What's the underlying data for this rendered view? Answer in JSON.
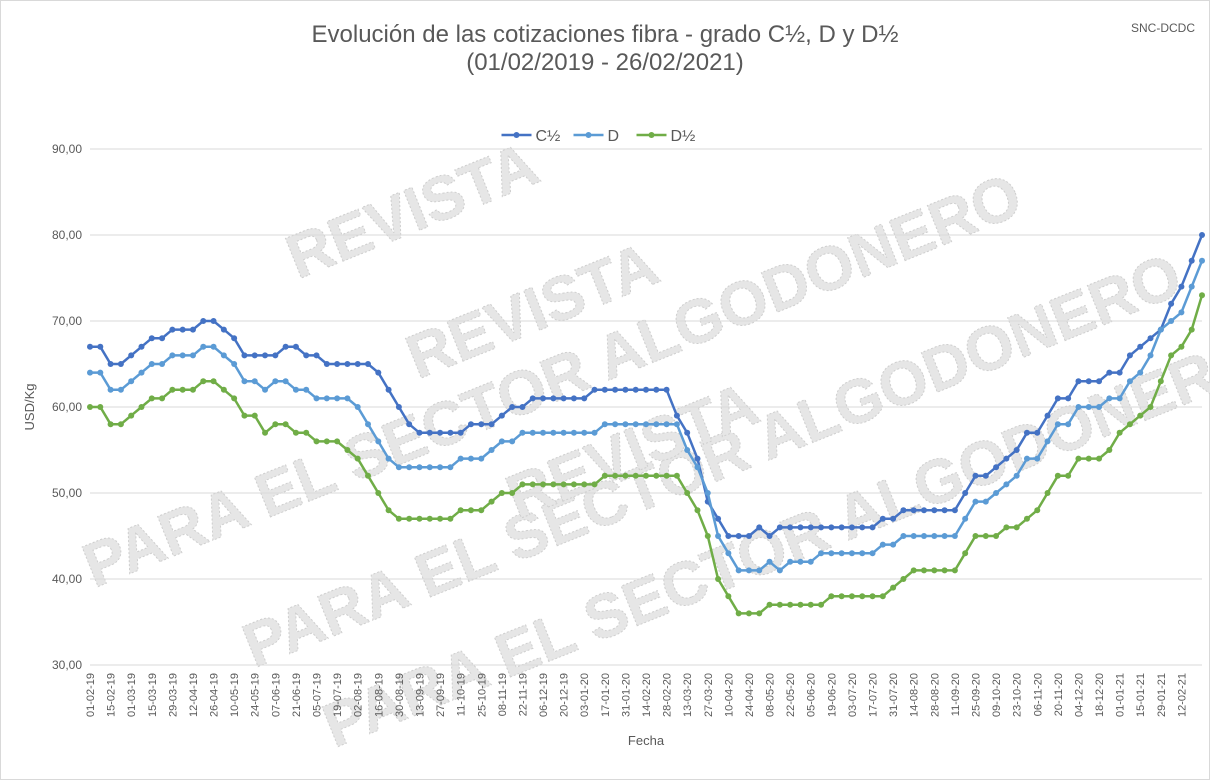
{
  "chart_data": {
    "type": "line",
    "title": "Evolución de las cotizaciones fibra - grado C½, D y D½",
    "subtitle": "(01/02/2019 - 26/02/2021)",
    "source": "SNC-DCDC",
    "xlabel": "Fecha",
    "ylabel": "USD/Kg",
    "watermark": [
      "REVISTA",
      "PARA EL SECTOR ALGODONERO",
      "REVISTA",
      "PARA EL SECTOR ALGODONERO",
      "REVISTA",
      "PARA EL SECTOR ALGODONERO"
    ],
    "legend": "top",
    "grid": true,
    "categories": [
      "01-02-19",
      null,
      "15-02-19",
      null,
      "01-03-19",
      null,
      "15-03-19",
      null,
      "29-03-19",
      null,
      "12-04-19",
      null,
      "26-04-19",
      null,
      "10-05-19",
      null,
      "24-05-19",
      null,
      "07-06-19",
      null,
      "21-06-19",
      null,
      "05-07-19",
      null,
      "19-07-19",
      null,
      "02-08-19",
      null,
      "16-08-19",
      null,
      "30-08-19",
      null,
      "13-09-19",
      null,
      "27-09-19",
      null,
      "11-10-19",
      null,
      "25-10-19",
      null,
      "08-11-19",
      null,
      "22-11-19",
      null,
      "06-12-19",
      null,
      "20-12-19",
      null,
      "03-01-20",
      null,
      "17-01-20",
      null,
      "31-01-20",
      null,
      "14-02-20",
      null,
      "28-02-20",
      null,
      "13-03-20",
      null,
      "27-03-20",
      null,
      "10-04-20",
      null,
      "24-04-20",
      null,
      "08-05-20",
      null,
      "22-05-20",
      null,
      "05-06-20",
      null,
      "19-06-20",
      null,
      "03-07-20",
      null,
      "17-07-20",
      null,
      "31-07-20",
      null,
      "14-08-20",
      null,
      "28-08-20",
      null,
      "11-09-20",
      null,
      "25-09-20",
      null,
      "09-10-20",
      null,
      "23-10-20",
      null,
      "06-11-20",
      null,
      "20-11-20",
      null,
      "04-12-20",
      null,
      "18-12-20",
      null,
      "01-01-21",
      null,
      "15-01-21",
      null,
      "29-01-21",
      null,
      "12-02-21",
      null,
      null
    ],
    "series": [
      {
        "name": "C½",
        "color": "#4472c4",
        "values": [
          67,
          67,
          65,
          65,
          66,
          67,
          68,
          68,
          69,
          69,
          69,
          70,
          70,
          69,
          68,
          66,
          66,
          66,
          66,
          67,
          67,
          66,
          66,
          65,
          65,
          65,
          65,
          65,
          64,
          62,
          60,
          58,
          57,
          57,
          57,
          57,
          57,
          58,
          58,
          58,
          59,
          60,
          60,
          61,
          61,
          61,
          61,
          61,
          61,
          62,
          62,
          62,
          62,
          62,
          62,
          62,
          62,
          59,
          57,
          54,
          49,
          47,
          45,
          45,
          45,
          46,
          45,
          46,
          46,
          46,
          46,
          46,
          46,
          46,
          46,
          46,
          46,
          47,
          47,
          48,
          48,
          48,
          48,
          48,
          48,
          50,
          52,
          52,
          53,
          54,
          55,
          57,
          57,
          59,
          61,
          61,
          63,
          63,
          63,
          64,
          64,
          66,
          67,
          68,
          69,
          72,
          74,
          77,
          80
        ]
      },
      {
        "name": "D",
        "color": "#5b9bd5",
        "values": [
          64,
          64,
          62,
          62,
          63,
          64,
          65,
          65,
          66,
          66,
          66,
          67,
          67,
          66,
          65,
          63,
          63,
          62,
          63,
          63,
          62,
          62,
          61,
          61,
          61,
          61,
          60,
          58,
          56,
          54,
          53,
          53,
          53,
          53,
          53,
          53,
          54,
          54,
          54,
          55,
          56,
          56,
          57,
          57,
          57,
          57,
          57,
          57,
          57,
          57,
          58,
          58,
          58,
          58,
          58,
          58,
          58,
          58,
          55,
          53,
          50,
          45,
          43,
          41,
          41,
          41,
          42,
          41,
          42,
          42,
          42,
          43,
          43,
          43,
          43,
          43,
          43,
          44,
          44,
          45,
          45,
          45,
          45,
          45,
          45,
          47,
          49,
          49,
          50,
          51,
          52,
          54,
          54,
          56,
          58,
          58,
          60,
          60,
          60,
          61,
          61,
          63,
          64,
          66,
          69,
          70,
          71,
          74,
          77
        ]
      },
      {
        "name": "D½",
        "color": "#70ad47",
        "values": [
          60,
          60,
          58,
          58,
          59,
          60,
          61,
          61,
          62,
          62,
          62,
          63,
          63,
          62,
          61,
          59,
          59,
          57,
          58,
          58,
          57,
          57,
          56,
          56,
          56,
          55,
          54,
          52,
          50,
          48,
          47,
          47,
          47,
          47,
          47,
          47,
          48,
          48,
          48,
          49,
          50,
          50,
          51,
          51,
          51,
          51,
          51,
          51,
          51,
          51,
          52,
          52,
          52,
          52,
          52,
          52,
          52,
          52,
          50,
          48,
          45,
          40,
          38,
          36,
          36,
          36,
          37,
          37,
          37,
          37,
          37,
          37,
          38,
          38,
          38,
          38,
          38,
          38,
          39,
          40,
          41,
          41,
          41,
          41,
          41,
          43,
          45,
          45,
          45,
          46,
          46,
          47,
          48,
          50,
          52,
          52,
          54,
          54,
          54,
          55,
          57,
          58,
          59,
          60,
          63,
          66,
          67,
          69,
          73
        ]
      }
    ],
    "ylim": [
      30,
      90
    ],
    "yticks": [
      {
        "value": 30,
        "label": "30,00"
      },
      {
        "value": 40,
        "label": "40,00"
      },
      {
        "value": 50,
        "label": "50,00"
      },
      {
        "value": 60,
        "label": "60,00"
      },
      {
        "value": 70,
        "label": "70,00"
      },
      {
        "value": 80,
        "label": "80,00"
      },
      {
        "value": 90,
        "label": "90,00"
      }
    ]
  }
}
